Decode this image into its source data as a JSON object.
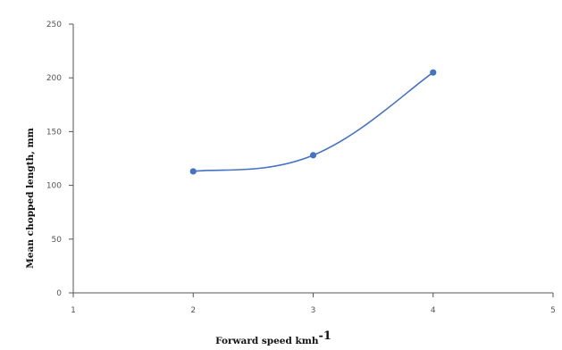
{
  "chart_data": {
    "type": "line",
    "title": "",
    "xlabel": "Forward speed  kmh",
    "xlabel_superscript": "-1",
    "ylabel": "Mean chopped  length, mm",
    "x_ticks": [
      "1",
      "2",
      "3",
      "4",
      "5"
    ],
    "y_ticks": [
      "0",
      "50",
      "100",
      "150",
      "200",
      "250"
    ],
    "xlim": [
      1,
      5
    ],
    "ylim": [
      0,
      250
    ],
    "grid": false,
    "legend": "none",
    "smooth": true,
    "series": [
      {
        "color": "#4472c4",
        "x": [
          2,
          3,
          4
        ],
        "values": [
          113,
          128,
          205
        ]
      }
    ]
  }
}
